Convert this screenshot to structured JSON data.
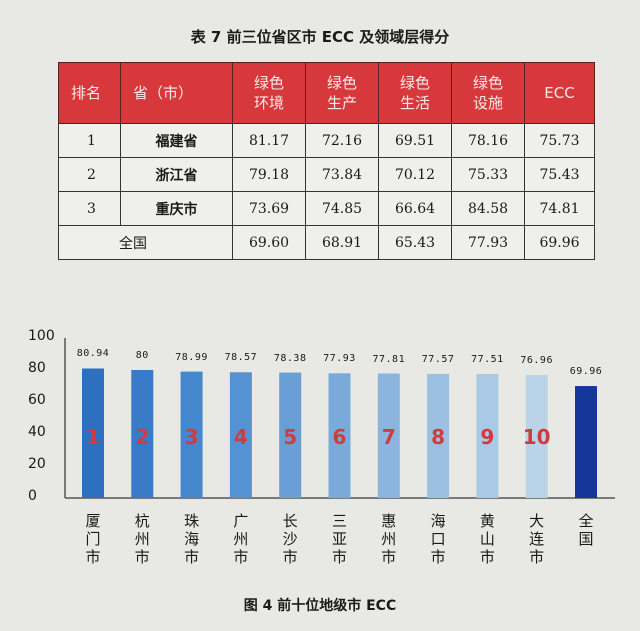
{
  "table": {
    "caption": "表 7   前三位省区市 ECC 及领域层得分",
    "headers": [
      {
        "l1": "排名",
        "l2": ""
      },
      {
        "l1": "省（市）",
        "l2": ""
      },
      {
        "l1": "绿色",
        "l2": "环境"
      },
      {
        "l1": "绿色",
        "l2": "生产"
      },
      {
        "l1": "绿色",
        "l2": "生活"
      },
      {
        "l1": "绿色",
        "l2": "设施"
      },
      {
        "l1": "ECC",
        "l2": ""
      }
    ],
    "rows": [
      {
        "rank": "1",
        "name": "福建省",
        "v": [
          "81.17",
          "72.16",
          "69.51",
          "78.16",
          "75.73"
        ]
      },
      {
        "rank": "2",
        "name": "浙江省",
        "v": [
          "79.18",
          "73.84",
          "70.12",
          "75.33",
          "75.43"
        ]
      },
      {
        "rank": "3",
        "name": "重庆市",
        "v": [
          "73.69",
          "74.85",
          "66.64",
          "84.58",
          "74.81"
        ]
      }
    ],
    "national": {
      "name": "全国",
      "v": [
        "69.60",
        "68.91",
        "65.43",
        "77.93",
        "69.96"
      ]
    }
  },
  "chart_data": {
    "type": "bar",
    "categories": [
      "厦门市",
      "杭州市",
      "珠海市",
      "广州市",
      "长沙市",
      "三亚市",
      "惠州市",
      "海口市",
      "黄山市",
      "大连市",
      "全国"
    ],
    "values": [
      80.94,
      80,
      78.99,
      78.57,
      78.38,
      77.93,
      77.81,
      77.57,
      77.51,
      76.96,
      69.96
    ],
    "value_labels": [
      "80.94",
      "80",
      "78.99",
      "78.57",
      "78.38",
      "77.93",
      "77.81",
      "77.57",
      "77.51",
      "76.96",
      "69.96"
    ],
    "ranks": [
      "1",
      "2",
      "3",
      "4",
      "5",
      "6",
      "7",
      "8",
      "9",
      "10",
      ""
    ],
    "bar_colors": [
      "#2f6fc0",
      "#3a7bc8",
      "#4587ce",
      "#5592d2",
      "#6a9fd6",
      "#79aad9",
      "#8bb5de",
      "#9bc0e1",
      "#aac9e4",
      "#bbd3e7",
      "#15379a"
    ],
    "ylim": [
      0,
      100
    ],
    "yticks": [
      "0",
      "20",
      "40",
      "60",
      "80",
      "100"
    ],
    "grid": false,
    "title": "图 4   前十位地级市 ECC",
    "xlabel": "",
    "ylabel": ""
  }
}
